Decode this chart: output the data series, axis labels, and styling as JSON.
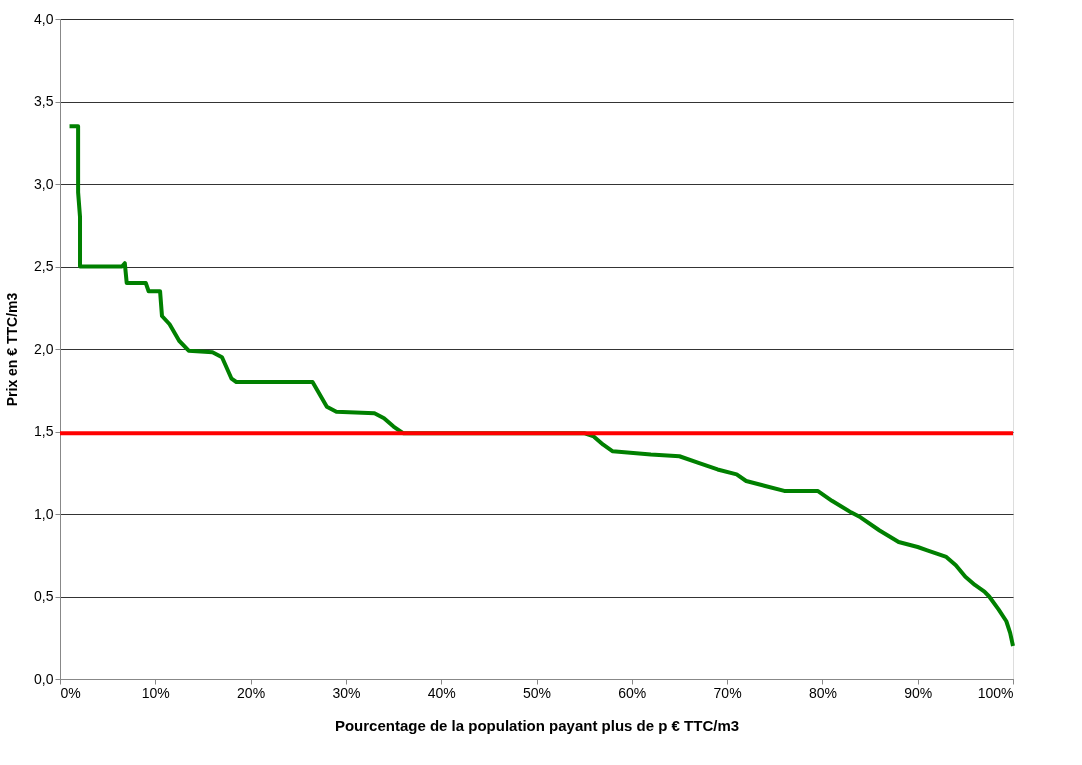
{
  "chart_data": {
    "type": "line",
    "xlabel": "Pourcentage de la population payant plus de p € TTC/m3",
    "ylabel": "Prix en € TTC/m3",
    "xlim": [
      0,
      100
    ],
    "ylim": [
      0,
      4
    ],
    "xticks": [
      {
        "value": 0,
        "label": "0%"
      },
      {
        "value": 10,
        "label": "10%"
      },
      {
        "value": 20,
        "label": "20%"
      },
      {
        "value": 30,
        "label": "30%"
      },
      {
        "value": 40,
        "label": "40%"
      },
      {
        "value": 50,
        "label": "50%"
      },
      {
        "value": 60,
        "label": "60%"
      },
      {
        "value": 70,
        "label": "70%"
      },
      {
        "value": 80,
        "label": "80%"
      },
      {
        "value": 90,
        "label": "90%"
      },
      {
        "value": 100,
        "label": "100%"
      }
    ],
    "yticks": [
      {
        "value": 0,
        "label": "0,0"
      },
      {
        "value": 0.5,
        "label": "0,5"
      },
      {
        "value": 1,
        "label": "1,0"
      },
      {
        "value": 1.5,
        "label": "1,5"
      },
      {
        "value": 2,
        "label": "2,0"
      },
      {
        "value": 2.5,
        "label": "2,5"
      },
      {
        "value": 3,
        "label": "3,0"
      },
      {
        "value": 3.5,
        "label": "3,5"
      },
      {
        "value": 4,
        "label": "4,0"
      }
    ],
    "grid": "y",
    "marker": "none",
    "line_style": "solid",
    "series": [
      {
        "color": "#008000",
        "x": [
          1,
          1.9,
          1.9,
          2.1,
          2.1,
          6.5,
          6.8,
          7,
          9,
          9.3,
          10.5,
          10.7,
          11.5,
          12.5,
          13.5,
          16,
          17,
          18,
          18.5,
          26.5,
          27,
          27.5,
          28,
          29,
          33,
          34,
          35,
          36,
          55,
          56,
          57,
          58,
          62,
          65,
          67,
          69,
          71,
          72,
          74,
          76,
          79.5,
          81,
          83,
          84,
          86,
          88,
          90,
          91,
          93,
          94,
          95,
          96,
          97,
          97.5,
          98.5,
          99.3,
          99.7,
          100
        ],
        "values": [
          3.35,
          3.35,
          2.95,
          2.8,
          2.5,
          2.5,
          2.52,
          2.4,
          2.4,
          2.35,
          2.35,
          2.2,
          2.15,
          2.05,
          1.99,
          1.98,
          1.95,
          1.82,
          1.8,
          1.8,
          1.75,
          1.7,
          1.65,
          1.62,
          1.61,
          1.58,
          1.53,
          1.49,
          1.49,
          1.47,
          1.42,
          1.38,
          1.36,
          1.35,
          1.31,
          1.27,
          1.24,
          1.2,
          1.17,
          1.14,
          1.14,
          1.08,
          1.01,
          0.98,
          0.9,
          0.83,
          0.8,
          0.78,
          0.74,
          0.69,
          0.62,
          0.57,
          0.53,
          0.5,
          0.42,
          0.35,
          0.28,
          0.2
        ]
      }
    ],
    "ref_lines": [
      {
        "axis": "y",
        "value": 1.49,
        "color": "#ff0000",
        "line_style": "solid"
      }
    ]
  }
}
